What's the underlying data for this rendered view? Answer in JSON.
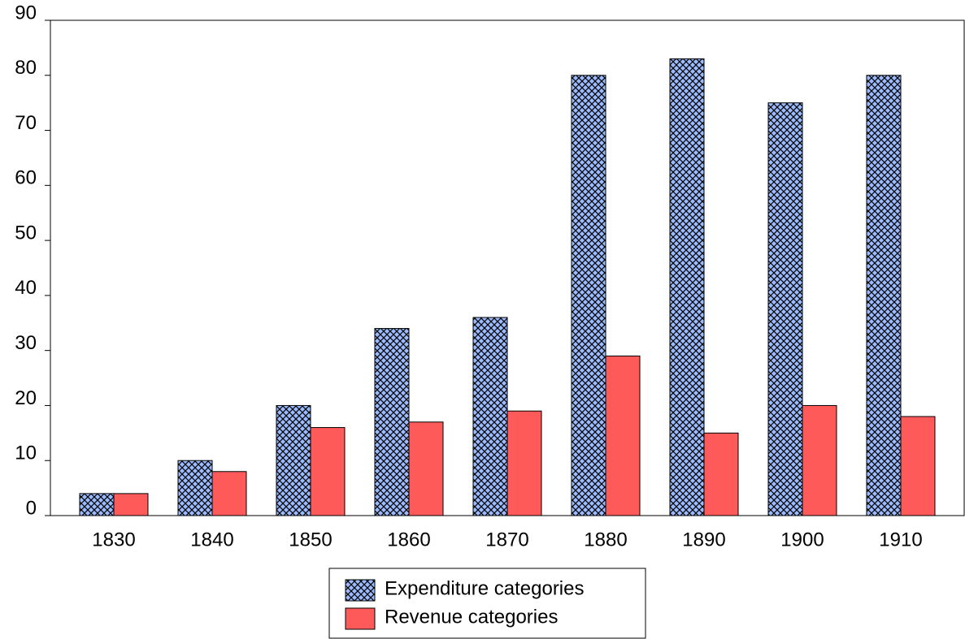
{
  "chart_data": {
    "type": "bar",
    "categories": [
      "1830",
      "1840",
      "1850",
      "1860",
      "1870",
      "1880",
      "1890",
      "1900",
      "1910"
    ],
    "series": [
      {
        "name": "Expenditure categories",
        "color": "#99bbff",
        "hatch": "crosshatch",
        "values": [
          4,
          10,
          20,
          34,
          36,
          80,
          83,
          75,
          80
        ]
      },
      {
        "name": "Revenue categories",
        "color": "#ff5a5a",
        "values": [
          4,
          8,
          16,
          17,
          19,
          29,
          15,
          20,
          18
        ]
      }
    ],
    "ylim": [
      0,
      90
    ],
    "yticks": [
      0,
      10,
      20,
      30,
      40,
      50,
      60,
      70,
      80,
      90
    ],
    "grid": false,
    "legend": "bottom"
  }
}
